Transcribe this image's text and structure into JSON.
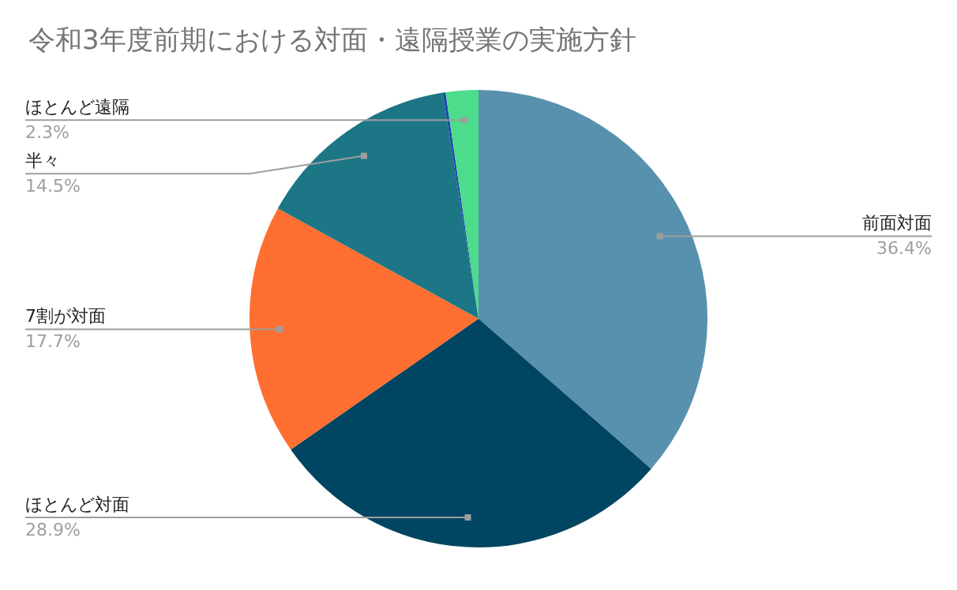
{
  "chart_data": {
    "type": "pie",
    "title": "令和3年度前期における対面・遠隔授業の実施方針",
    "categories": [
      "前面対面",
      "ほとんど対面",
      "7割が対面",
      "半々",
      null,
      "ほとんど遠隔"
    ],
    "values": [
      36.4,
      28.9,
      17.7,
      14.5,
      0.2,
      2.3
    ],
    "colors": [
      "#5891ad",
      "#004561",
      "#ff6f31",
      "#1c7685",
      "#1a47a8",
      "#4cdc8b"
    ],
    "value_labels": [
      "36.4%",
      "28.9%",
      "17.7%",
      "14.5%",
      null,
      "2.3%"
    ],
    "legend": false
  }
}
